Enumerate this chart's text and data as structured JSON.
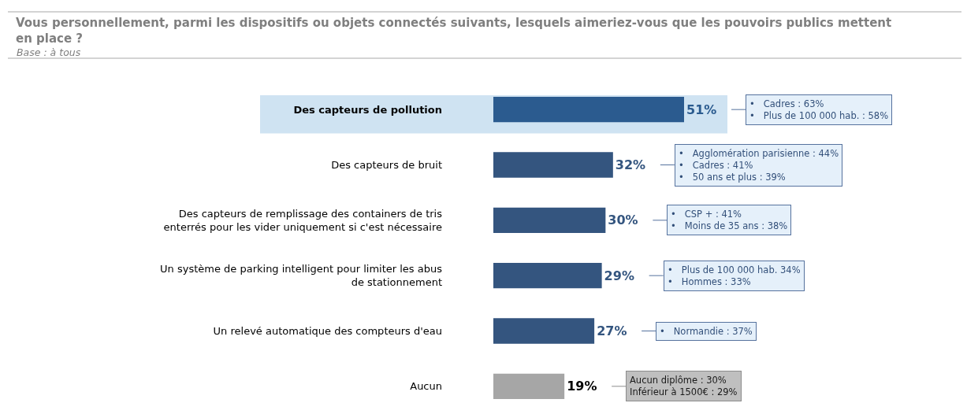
{
  "chart_data": {
    "type": "bar",
    "orientation": "horizontal",
    "tick_labels": "y",
    "title": "Vous personnellement, parmi les dispositifs ou objets connectés suivants, lesquels aimeriez-vous que les pouvoirs publics mettent en place ?",
    "subtitle": "Base : à tous",
    "categories": [
      "Des capteurs de pollution",
      "Des capteurs de bruit",
      "Des capteurs de remplissage des containers de tris enterrés pour les vider uniquement si c'est nécessaire",
      "Un système de parking intelligent pour limiter les abus de stationnement",
      "Un relevé automatique des compteurs d'eau",
      "Aucun"
    ],
    "values": [
      51,
      32,
      30,
      29,
      27,
      19
    ],
    "colors": [
      "#2b5b8f",
      "#34557f",
      "#34557f",
      "#34557f",
      "#34557f",
      "#a6a6a6"
    ],
    "value_labels": [
      "51%",
      "32%",
      "30%",
      "29%",
      "27%",
      "19%"
    ],
    "bands": [
      {
        "axis": "y",
        "from": "Des capteurs de pollution",
        "to": "Des capteurs de pollution",
        "color": "#cfe3f2"
      }
    ],
    "annotations": [
      "•   Cadres : 63%\n•   Plus de 100 000 hab. : 58%",
      "•   Agglomération parisienne : 44%\n•   Cadres : 41%\n•   50 ans et plus : 39%",
      "•   CSP + : 41%\n•   Moins de 35 ans : 38%",
      "•   Plus de 100 000 hab. 34%\n•   Hommes : 33%",
      "•   Normandie : 37%",
      "Aucun diplôme : 30%\nInférieur à 1500€ : 29%"
    ]
  }
}
